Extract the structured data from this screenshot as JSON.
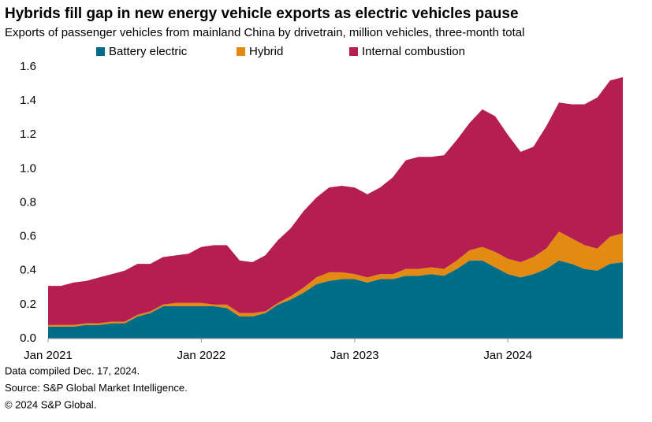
{
  "chart_data": {
    "type": "stacked_area",
    "title": "Hybrids fill gap in new energy vehicle exports as electric vehicles pause",
    "subtitle": "Exports of passenger vehicles from mainland China by drivetrain, million vehicles, three-month total",
    "categories": [
      "Jan 2021",
      null,
      null,
      null,
      null,
      null,
      null,
      null,
      null,
      null,
      null,
      null,
      "Jan 2022",
      null,
      null,
      null,
      null,
      null,
      null,
      null,
      null,
      null,
      null,
      null,
      "Jan 2023",
      null,
      null,
      null,
      null,
      null,
      null,
      null,
      null,
      null,
      null,
      null,
      "Jan 2024",
      null,
      null,
      null,
      null,
      null,
      null,
      null,
      null,
      null
    ],
    "series": [
      {
        "name": "Battery electric",
        "color": "#006e89",
        "values": [
          0.07,
          0.07,
          0.07,
          0.08,
          0.08,
          0.09,
          0.09,
          0.13,
          0.15,
          0.19,
          0.19,
          0.19,
          0.19,
          0.19,
          0.18,
          0.13,
          0.13,
          0.15,
          0.2,
          0.23,
          0.27,
          0.32,
          0.34,
          0.35,
          0.35,
          0.33,
          0.35,
          0.35,
          0.37,
          0.37,
          0.38,
          0.37,
          0.41,
          0.46,
          0.46,
          0.42,
          0.38,
          0.36,
          0.38,
          0.41,
          0.46,
          0.44,
          0.41,
          0.4,
          0.44,
          0.45
        ]
      },
      {
        "name": "Hybrid",
        "color": "#e38a12",
        "values": [
          0.01,
          0.01,
          0.01,
          0.01,
          0.01,
          0.01,
          0.01,
          0.01,
          0.01,
          0.01,
          0.02,
          0.02,
          0.02,
          0.01,
          0.02,
          0.02,
          0.02,
          0.01,
          0.01,
          0.02,
          0.03,
          0.04,
          0.05,
          0.04,
          0.03,
          0.03,
          0.03,
          0.03,
          0.04,
          0.04,
          0.04,
          0.04,
          0.05,
          0.06,
          0.08,
          0.09,
          0.09,
          0.09,
          0.1,
          0.12,
          0.17,
          0.15,
          0.14,
          0.13,
          0.16,
          0.17
        ]
      },
      {
        "name": "Internal combustion",
        "color": "#b51e50",
        "values": [
          0.23,
          0.23,
          0.25,
          0.25,
          0.27,
          0.28,
          0.3,
          0.3,
          0.28,
          0.28,
          0.28,
          0.29,
          0.33,
          0.35,
          0.35,
          0.31,
          0.3,
          0.33,
          0.37,
          0.4,
          0.45,
          0.47,
          0.5,
          0.51,
          0.51,
          0.49,
          0.51,
          0.57,
          0.64,
          0.66,
          0.65,
          0.67,
          0.71,
          0.75,
          0.81,
          0.8,
          0.73,
          0.65,
          0.65,
          0.72,
          0.76,
          0.79,
          0.83,
          0.89,
          0.92,
          0.92
        ]
      }
    ],
    "ylim": [
      0,
      1.6
    ],
    "yticks": [
      {
        "value": 0,
        "label": "0.0"
      },
      0.2,
      0.4,
      0.6,
      0.8,
      {
        "value": 1,
        "label": "1.0"
      },
      1.2,
      1.4,
      1.6
    ],
    "grid": false,
    "notes": [
      "Data compiled Dec. 17, 2024.",
      "Source: S&P Global Market Intelligence.",
      "© 2024 S&P Global."
    ]
  }
}
